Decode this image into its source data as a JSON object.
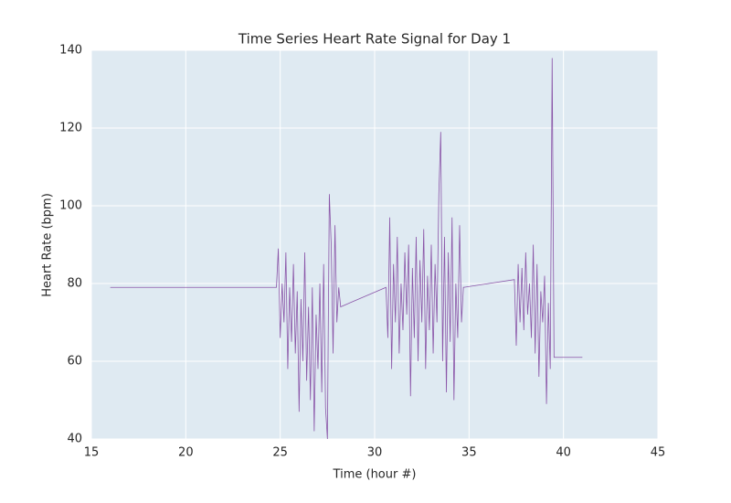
{
  "chart_data": {
    "type": "line",
    "title": "Time Series Heart Rate Signal for Day 1",
    "x_label": "Time (hour #)",
    "y_label": "Heart Rate (bpm)",
    "x": [
      16,
      24.8,
      24.9,
      25.0,
      25.1,
      25.2,
      25.3,
      25.4,
      25.5,
      25.6,
      25.7,
      25.8,
      25.9,
      26.0,
      26.1,
      26.2,
      26.3,
      26.4,
      26.5,
      26.6,
      26.7,
      26.8,
      26.9,
      27.0,
      27.1,
      27.2,
      27.3,
      27.4,
      27.5,
      27.6,
      27.7,
      27.8,
      27.9,
      28.0,
      28.1,
      28.2,
      30.6,
      30.7,
      30.8,
      30.9,
      31.0,
      31.1,
      31.2,
      31.3,
      31.4,
      31.5,
      31.6,
      31.7,
      31.8,
      31.9,
      32.0,
      32.1,
      32.2,
      32.3,
      32.4,
      32.5,
      32.6,
      32.7,
      32.8,
      32.9,
      33.0,
      33.1,
      33.2,
      33.3,
      33.4,
      33.5,
      33.6,
      33.7,
      33.8,
      33.9,
      34.0,
      34.1,
      34.2,
      34.3,
      34.4,
      34.5,
      34.6,
      34.7,
      37.4,
      37.5,
      37.6,
      37.7,
      37.8,
      37.9,
      38.0,
      38.1,
      38.2,
      38.3,
      38.4,
      38.5,
      38.6,
      38.7,
      38.8,
      38.9,
      39.0,
      39.1,
      39.2,
      39.3,
      39.4,
      39.5,
      41
    ],
    "series": [
      {
        "name": "Heart Rate",
        "color": "#8a55a8",
        "values": [
          79,
          79,
          89,
          66,
          80,
          70,
          88,
          58,
          79,
          65,
          85,
          62,
          78,
          47,
          76,
          60,
          88,
          55,
          74,
          50,
          79,
          42,
          72,
          58,
          80,
          52,
          85,
          48,
          40,
          103,
          90,
          62,
          95,
          70,
          79,
          74,
          79,
          66,
          97,
          58,
          85,
          70,
          92,
          62,
          80,
          68,
          88,
          72,
          90,
          51,
          84,
          66,
          92,
          60,
          86,
          70,
          94,
          58,
          82,
          68,
          90,
          62,
          85,
          70,
          103,
          119,
          60,
          92,
          52,
          88,
          65,
          97,
          50,
          80,
          66,
          95,
          70,
          79,
          81,
          64,
          85,
          70,
          84,
          68,
          88,
          72,
          80,
          66,
          90,
          62,
          85,
          56,
          78,
          70,
          82,
          49,
          75,
          58,
          138,
          61,
          61
        ]
      }
    ],
    "xlim": [
      15,
      45
    ],
    "xticks": [
      15,
      20,
      25,
      30,
      35,
      40,
      45
    ],
    "ylim": [
      40,
      140
    ],
    "yticks": [
      40,
      60,
      80,
      100,
      120,
      140
    ],
    "grid": true
  }
}
